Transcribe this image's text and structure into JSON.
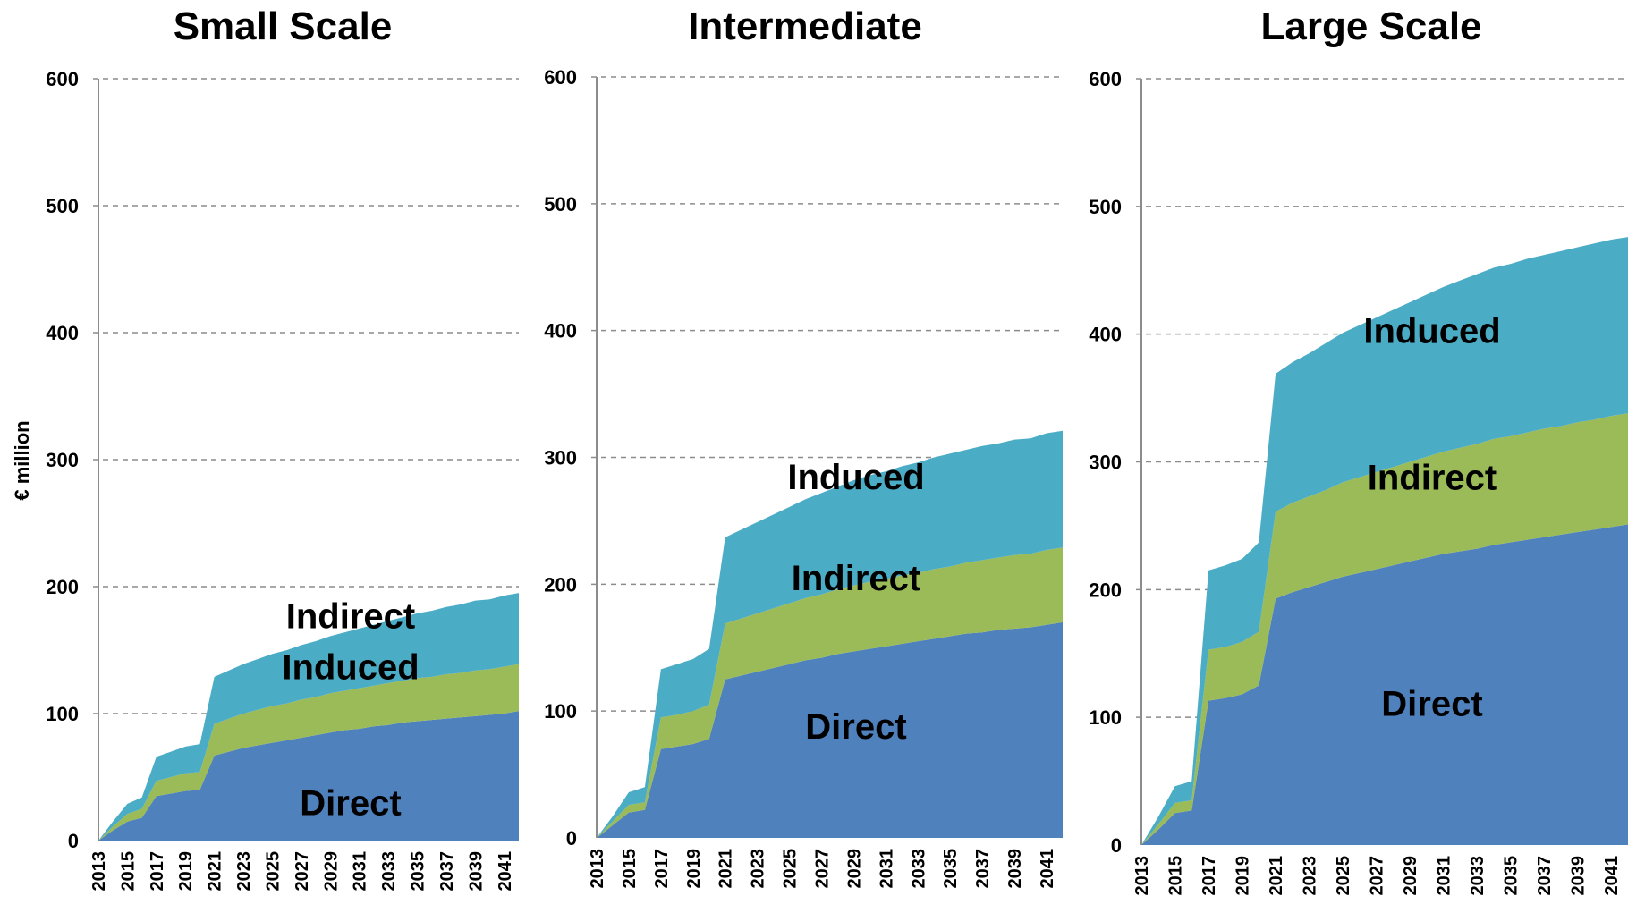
{
  "y_axis_label": "€ million",
  "colors": {
    "direct": "#4f81bd",
    "indirect": "#9bbb59",
    "induced": "#4bacc6",
    "grid": "#8c8c8c"
  },
  "chart_data": [
    {
      "type": "area",
      "title": "Small Scale",
      "ylabel": "€ million",
      "ylim": [
        0,
        600
      ],
      "yticks": [
        0,
        100,
        200,
        300,
        400,
        500,
        600
      ],
      "grid": true,
      "stacked": true,
      "x": [
        2013,
        2014,
        2015,
        2016,
        2017,
        2018,
        2019,
        2020,
        2021,
        2022,
        2023,
        2024,
        2025,
        2026,
        2027,
        2028,
        2029,
        2030,
        2031,
        2032,
        2033,
        2034,
        2035,
        2036,
        2037,
        2038,
        2039,
        2040,
        2041,
        2042
      ],
      "xtick_labels": [
        "2013",
        "2015",
        "2017",
        "2019",
        "2021",
        "2023",
        "2025",
        "2027",
        "2029",
        "2031",
        "2033",
        "2035",
        "2037",
        "2039",
        "2041"
      ],
      "series": [
        {
          "name": "Direct",
          "values": [
            0,
            8,
            15,
            18,
            35,
            37,
            39,
            40,
            67,
            70,
            73,
            75,
            77,
            79,
            81,
            83,
            85,
            87,
            88,
            90,
            91,
            93,
            94,
            95,
            96,
            97,
            98,
            99,
            100,
            102
          ]
        },
        {
          "name": "Indirect",
          "values": [
            0,
            3,
            6,
            7,
            12,
            13,
            14,
            14,
            25,
            26,
            27,
            28,
            29,
            29,
            30,
            30,
            31,
            31,
            32,
            32,
            33,
            33,
            34,
            34,
            35,
            35,
            36,
            36,
            37,
            37
          ]
        },
        {
          "name": "Induced",
          "values": [
            0,
            4,
            8,
            9,
            19,
            20,
            21,
            22,
            37,
            38,
            39,
            40,
            41,
            42,
            43,
            44,
            45,
            46,
            47,
            48,
            49,
            50,
            51,
            52,
            53,
            54,
            55,
            55,
            56,
            56
          ]
        }
      ]
    },
    {
      "type": "area",
      "title": "Intermediate",
      "ylim": [
        0,
        600
      ],
      "yticks": [
        0,
        100,
        200,
        300,
        400,
        500,
        600
      ],
      "grid": true,
      "stacked": true,
      "x": [
        2013,
        2014,
        2015,
        2016,
        2017,
        2018,
        2019,
        2020,
        2021,
        2022,
        2023,
        2024,
        2025,
        2026,
        2027,
        2028,
        2029,
        2030,
        2031,
        2032,
        2033,
        2034,
        2035,
        2036,
        2037,
        2038,
        2039,
        2040,
        2041,
        2042
      ],
      "xtick_labels": [
        "2013",
        "2015",
        "2017",
        "2019",
        "2021",
        "2023",
        "2025",
        "2027",
        "2029",
        "2031",
        "2033",
        "2035",
        "2037",
        "2039",
        "2041"
      ],
      "series": [
        {
          "name": "Direct",
          "values": [
            0,
            10,
            20,
            22,
            70,
            72,
            74,
            78,
            125,
            128,
            131,
            134,
            137,
            140,
            142,
            145,
            147,
            149,
            151,
            153,
            155,
            157,
            159,
            161,
            162,
            164,
            165,
            166,
            168,
            170
          ]
        },
        {
          "name": "Indirect",
          "values": [
            0,
            3,
            6,
            6,
            25,
            25,
            26,
            27,
            44,
            45,
            46,
            47,
            48,
            49,
            50,
            51,
            52,
            53,
            53,
            54,
            54,
            55,
            55,
            56,
            57,
            57,
            58,
            58,
            59,
            59
          ]
        },
        {
          "name": "Induced",
          "values": [
            0,
            4,
            10,
            12,
            38,
            40,
            41,
            44,
            68,
            70,
            72,
            74,
            76,
            78,
            80,
            81,
            83,
            84,
            85,
            86,
            87,
            88,
            89,
            89,
            90,
            90,
            91,
            91,
            92,
            92
          ]
        }
      ]
    },
    {
      "type": "area",
      "title": "Large Scale",
      "ylim": [
        0,
        600
      ],
      "yticks": [
        0,
        100,
        200,
        300,
        400,
        500,
        600
      ],
      "grid": true,
      "stacked": true,
      "x": [
        2013,
        2014,
        2015,
        2016,
        2017,
        2018,
        2019,
        2020,
        2021,
        2022,
        2023,
        2024,
        2025,
        2026,
        2027,
        2028,
        2029,
        2030,
        2031,
        2032,
        2033,
        2034,
        2035,
        2036,
        2037,
        2038,
        2039,
        2040,
        2041,
        2042
      ],
      "xtick_labels": [
        "2013",
        "2015",
        "2017",
        "2019",
        "2021",
        "2023",
        "2025",
        "2027",
        "2029",
        "2031",
        "2033",
        "2035",
        "2037",
        "2039",
        "2041"
      ],
      "series": [
        {
          "name": "Direct",
          "values": [
            0,
            12,
            25,
            27,
            113,
            115,
            118,
            125,
            193,
            198,
            202,
            206,
            210,
            213,
            216,
            219,
            222,
            225,
            228,
            230,
            232,
            235,
            237,
            239,
            241,
            243,
            245,
            247,
            249,
            251
          ]
        },
        {
          "name": "Indirect",
          "values": [
            0,
            4,
            8,
            8,
            40,
            40,
            41,
            42,
            68,
            70,
            71,
            72,
            74,
            75,
            76,
            77,
            78,
            79,
            80,
            81,
            82,
            83,
            83,
            84,
            85,
            85,
            86,
            86,
            87,
            87
          ]
        },
        {
          "name": "Induced",
          "values": [
            0,
            6,
            13,
            15,
            62,
            64,
            65,
            70,
            108,
            110,
            112,
            115,
            117,
            119,
            121,
            123,
            125,
            127,
            129,
            131,
            133,
            134,
            135,
            136,
            136,
            137,
            137,
            138,
            138,
            138
          ]
        }
      ]
    }
  ]
}
